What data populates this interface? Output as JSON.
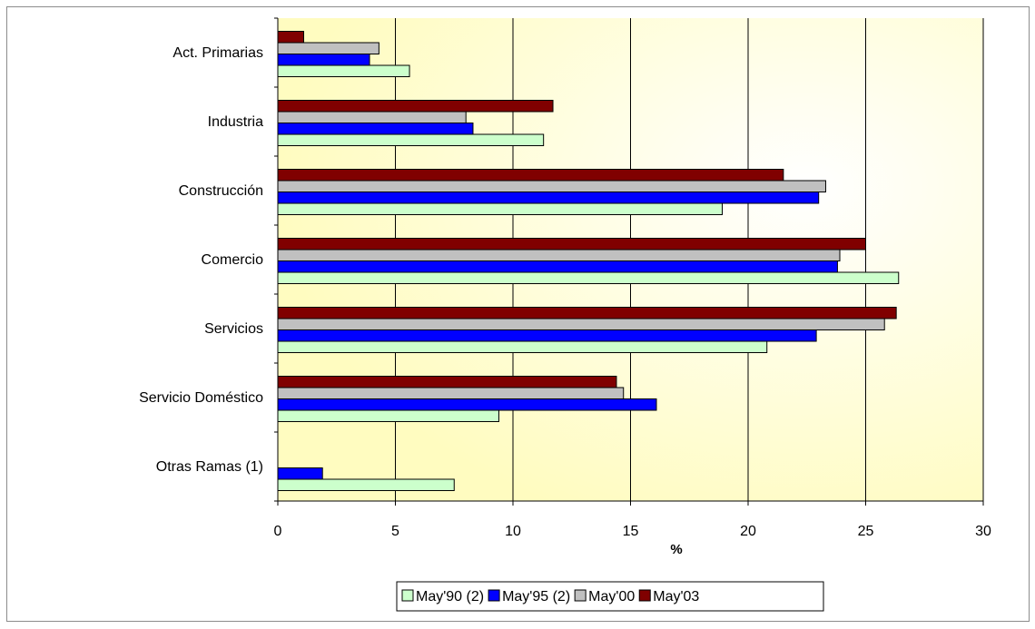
{
  "chart_data": {
    "type": "bar",
    "orientation": "horizontal",
    "categories": [
      "Act. Primarias",
      "Industria",
      "Construcción",
      "Comercio",
      "Servicios",
      "Servicio Doméstico",
      "Otras Ramas (1)"
    ],
    "series": [
      {
        "name": "May'90 (2)",
        "color": "#ccffcc",
        "values": [
          5.6,
          11.3,
          18.9,
          26.4,
          20.8,
          9.4,
          7.5
        ]
      },
      {
        "name": "May'95 (2)",
        "color": "#0000ff",
        "values": [
          3.9,
          8.3,
          23.0,
          23.8,
          22.9,
          16.1,
          1.9
        ]
      },
      {
        "name": "May'00",
        "color": "#c0c0c0",
        "values": [
          4.3,
          8.0,
          23.3,
          23.9,
          25.8,
          14.7,
          null
        ]
      },
      {
        "name": "May'03",
        "color": "#800000",
        "values": [
          1.1,
          11.7,
          21.5,
          25.0,
          26.3,
          14.4,
          null
        ]
      }
    ],
    "xlabel": "%",
    "xlim": [
      0,
      30
    ],
    "xticks": [
      "0",
      "5",
      "10",
      "15",
      "20",
      "25",
      "30"
    ],
    "grid": true,
    "legend_position": "bottom",
    "plot_background": "#ffffcc"
  }
}
